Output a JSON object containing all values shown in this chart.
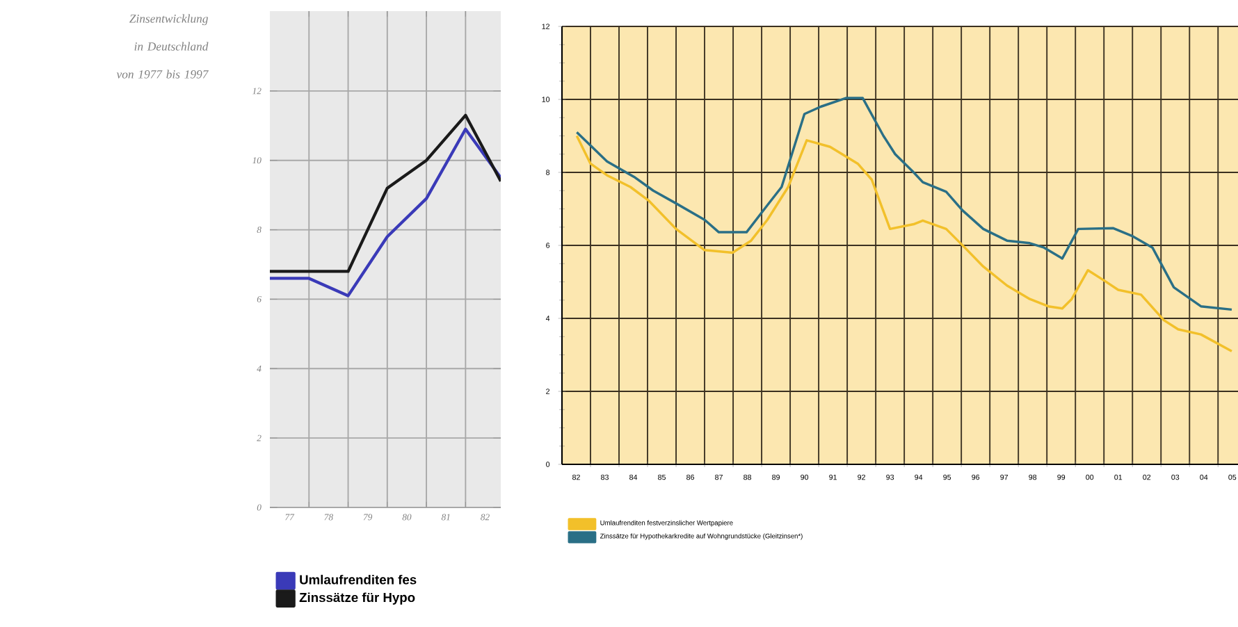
{
  "chart_data": [
    {
      "type": "line",
      "title": "Zinsentwicklung in Deutschland von 1977 bis 1997",
      "x": [
        1976.5,
        1977.5,
        1978.5,
        1979.5,
        1980.5,
        1981.5,
        1982.4
      ],
      "series": [
        {
          "name": "Umlaufrenditen fes",
          "color": "#3a3ab8",
          "values": [
            6.6,
            6.6,
            6.1,
            7.8,
            8.9,
            10.9,
            9.5
          ]
        },
        {
          "name": "Zinssätze für Hypo",
          "color": "#1a1a1a",
          "values": [
            6.8,
            6.8,
            6.8,
            9.2,
            10.0,
            11.3,
            9.4
          ]
        }
      ],
      "xlim": [
        1976.5,
        1982.4
      ],
      "xticks": [
        {
          "value": 1977,
          "label": "77"
        },
        {
          "value": 1978,
          "label": "78"
        },
        {
          "value": 1979,
          "label": "79"
        },
        {
          "value": 1980,
          "label": "80"
        },
        {
          "value": 1981,
          "label": "81"
        },
        {
          "value": 1982,
          "label": "82"
        },
        {
          "value": 1977.5,
          "label": null
        },
        {
          "value": 1978.5,
          "label": null
        },
        {
          "value": 1979.5,
          "label": null
        },
        {
          "value": 1980.5,
          "label": null
        },
        {
          "value": 1981.5,
          "label": null
        }
      ],
      "ylim": [
        0,
        14.3
      ],
      "yticks": [
        0,
        2,
        4,
        6,
        8,
        10,
        12
      ],
      "grid": true,
      "legend": "bottom"
    },
    {
      "type": "line",
      "series": [
        {
          "name": "Umlaufrenditen festverzinslicher Wertpapiere",
          "color": "#f2c02a",
          "x": [
            1982.02,
            1982.5,
            1983.08,
            1983.9,
            1984.55,
            1985.5,
            1986.5,
            1987.48,
            1988.13,
            1988.7,
            1989.43,
            1990.08,
            1990.9,
            1991.87,
            1992.36,
            1993.0,
            1993.83,
            1994.15,
            1994.97,
            1995.62,
            1996.27,
            1997.1,
            1997.9,
            1998.55,
            1999.04,
            1999.37,
            1999.94,
            2000.5,
            2001.0,
            2001.8,
            2002.6,
            2003.1,
            2003.9,
            2004.98
          ],
          "values": [
            9.0,
            8.24,
            7.92,
            7.6,
            7.22,
            6.45,
            5.87,
            5.8,
            6.13,
            6.7,
            7.6,
            8.88,
            8.7,
            8.24,
            7.8,
            6.45,
            6.58,
            6.68,
            6.45,
            5.94,
            5.42,
            4.9,
            4.53,
            4.33,
            4.27,
            4.53,
            5.32,
            5.04,
            4.78,
            4.65,
            3.95,
            3.7,
            3.56,
            3.1
          ]
        },
        {
          "name": "Zinssätze für Hypothekarkredite auf Wohngrundstücke (Gleitzinsen*)",
          "color": "#2a6f86",
          "x": [
            1982.02,
            1983.08,
            1984.06,
            1984.7,
            1985.5,
            1986.5,
            1987.0,
            1987.97,
            1988.7,
            1989.2,
            1990.0,
            1990.57,
            1991.47,
            1992.04,
            1992.77,
            1993.18,
            1993.83,
            1994.15,
            1994.97,
            1995.54,
            1996.27,
            1997.1,
            1997.9,
            1998.4,
            1999.04,
            1999.6,
            2000.83,
            2001.48,
            2002.2,
            2002.95,
            2003.9,
            2004.98
          ],
          "values": [
            9.1,
            8.3,
            7.86,
            7.5,
            7.15,
            6.7,
            6.36,
            6.36,
            7.1,
            7.6,
            9.6,
            9.8,
            10.04,
            10.04,
            9.0,
            8.5,
            8.0,
            7.73,
            7.47,
            6.96,
            6.45,
            6.13,
            6.06,
            5.94,
            5.64,
            6.45,
            6.47,
            6.26,
            5.94,
            4.85,
            4.33,
            4.24
          ]
        }
      ],
      "xlim": [
        1981.5,
        2005.2
      ],
      "xticks": [
        {
          "value": 1982,
          "label": "82"
        },
        {
          "value": 1983,
          "label": "83"
        },
        {
          "value": 1984,
          "label": "84"
        },
        {
          "value": 1985,
          "label": "85"
        },
        {
          "value": 1986,
          "label": "86"
        },
        {
          "value": 1987,
          "label": "87"
        },
        {
          "value": 1988,
          "label": "88"
        },
        {
          "value": 1989,
          "label": "89"
        },
        {
          "value": 1990,
          "label": "90"
        },
        {
          "value": 1991,
          "label": "91"
        },
        {
          "value": 1992,
          "label": "92"
        },
        {
          "value": 1993,
          "label": "93"
        },
        {
          "value": 1994,
          "label": "94"
        },
        {
          "value": 1995,
          "label": "95"
        },
        {
          "value": 1996,
          "label": "96"
        },
        {
          "value": 1997,
          "label": "97"
        },
        {
          "value": 1998,
          "label": "98"
        },
        {
          "value": 1999,
          "label": "99"
        },
        {
          "value": 2000,
          "label": "00"
        },
        {
          "value": 2001,
          "label": "01"
        },
        {
          "value": 2002,
          "label": "02"
        },
        {
          "value": 2003,
          "label": "03"
        },
        {
          "value": 2004,
          "label": "04"
        },
        {
          "value": 2005,
          "label": "05"
        },
        {
          "value": 1982.5,
          "label": null
        },
        {
          "value": 1983.5,
          "label": null
        },
        {
          "value": 1984.5,
          "label": null
        },
        {
          "value": 1985.5,
          "label": null
        },
        {
          "value": 1986.5,
          "label": null
        },
        {
          "value": 1987.5,
          "label": null
        },
        {
          "value": 1988.5,
          "label": null
        },
        {
          "value": 1989.5,
          "label": null
        },
        {
          "value": 1990.5,
          "label": null
        },
        {
          "value": 1991.5,
          "label": null
        },
        {
          "value": 1992.5,
          "label": null
        },
        {
          "value": 1993.5,
          "label": null
        },
        {
          "value": 1994.5,
          "label": null
        },
        {
          "value": 1995.5,
          "label": null
        },
        {
          "value": 1996.5,
          "label": null
        },
        {
          "value": 1997.5,
          "label": null
        },
        {
          "value": 1998.5,
          "label": null
        },
        {
          "value": 1999.5,
          "label": null
        },
        {
          "value": 2000.5,
          "label": null
        },
        {
          "value": 2001.5,
          "label": null
        },
        {
          "value": 2002.5,
          "label": null
        },
        {
          "value": 2003.5,
          "label": null
        },
        {
          "value": 2004.5,
          "label": null
        }
      ],
      "ylim": [
        0,
        12
      ],
      "yticks": [
        0,
        2,
        4,
        6,
        8,
        10,
        12,
        {
          "value": 0.5,
          "label": null
        },
        {
          "value": 1,
          "label": null
        },
        {
          "value": 1.5,
          "label": null
        },
        {
          "value": 2.5,
          "label": null
        },
        {
          "value": 3,
          "label": null
        },
        {
          "value": 3.5,
          "label": null
        },
        {
          "value": 4.5,
          "label": null
        },
        {
          "value": 5,
          "label": null
        },
        {
          "value": 5.5,
          "label": null
        },
        {
          "value": 6.5,
          "label": null
        },
        {
          "value": 7,
          "label": null
        },
        {
          "value": 7.5,
          "label": null
        },
        {
          "value": 8.5,
          "label": null
        },
        {
          "value": 9,
          "label": null
        },
        {
          "value": 9.5,
          "label": null
        },
        {
          "value": 10.5,
          "label": null
        },
        {
          "value": 11,
          "label": null
        },
        {
          "value": 11.5,
          "label": null
        }
      ],
      "grid": true,
      "legend": "bottom"
    }
  ]
}
